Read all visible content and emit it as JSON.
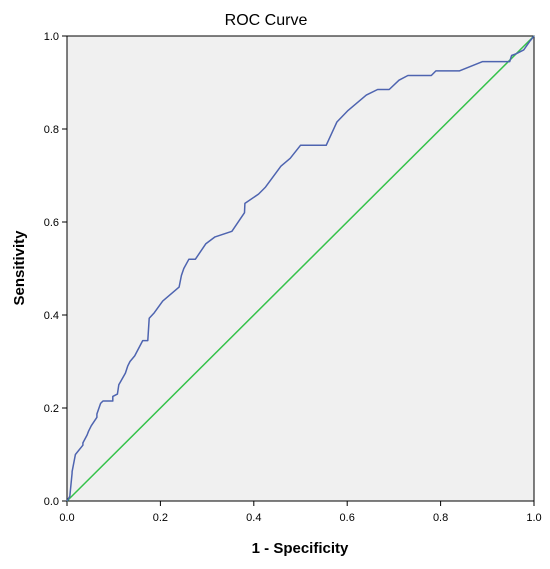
{
  "chart_data": {
    "type": "line",
    "title": "ROC Curve",
    "xlabel": "1 - Specificity",
    "ylabel": "Sensitivity",
    "xlim": [
      0.0,
      1.0
    ],
    "ylim": [
      0.0,
      1.0
    ],
    "x_ticks": [
      "0.0",
      "0.2",
      "0.4",
      "0.6",
      "0.8",
      "1.0"
    ],
    "y_ticks": [
      "0.0",
      "0.2",
      "0.4",
      "0.6",
      "0.8",
      "1.0"
    ],
    "grid": false,
    "legend": "none",
    "background_color": "#f0f0f0",
    "series": [
      {
        "color": "#4e64b0",
        "x": [
          0.0,
          0.006,
          0.011,
          0.011,
          0.018,
          0.018,
          0.034,
          0.034,
          0.043,
          0.046,
          0.052,
          0.064,
          0.064,
          0.072,
          0.077,
          0.098,
          0.098,
          0.108,
          0.111,
          0.125,
          0.13,
          0.135,
          0.145,
          0.162,
          0.173,
          0.176,
          0.187,
          0.205,
          0.24,
          0.245,
          0.25,
          0.261,
          0.275,
          0.297,
          0.317,
          0.353,
          0.38,
          0.381,
          0.41,
          0.425,
          0.458,
          0.478,
          0.5,
          0.555,
          0.578,
          0.602,
          0.641,
          0.665,
          0.69,
          0.711,
          0.73,
          0.78,
          0.79,
          0.84,
          0.89,
          0.948,
          0.952,
          0.962,
          0.978,
          0.992,
          1.0
        ],
        "y": [
          0.0,
          0.01,
          0.06,
          0.063,
          0.1,
          0.1,
          0.12,
          0.125,
          0.142,
          0.15,
          0.162,
          0.18,
          0.187,
          0.21,
          0.215,
          0.215,
          0.225,
          0.23,
          0.25,
          0.275,
          0.29,
          0.3,
          0.312,
          0.345,
          0.345,
          0.393,
          0.405,
          0.43,
          0.46,
          0.485,
          0.5,
          0.52,
          0.52,
          0.553,
          0.568,
          0.58,
          0.62,
          0.64,
          0.66,
          0.675,
          0.72,
          0.737,
          0.765,
          0.765,
          0.815,
          0.84,
          0.873,
          0.885,
          0.885,
          0.905,
          0.915,
          0.915,
          0.925,
          0.925,
          0.945,
          0.945,
          0.958,
          0.962,
          0.97,
          0.99,
          1.0
        ]
      },
      {
        "color": "#35c24a",
        "x": [
          0.0,
          1.0
        ],
        "y": [
          0.0,
          1.0
        ]
      }
    ]
  }
}
